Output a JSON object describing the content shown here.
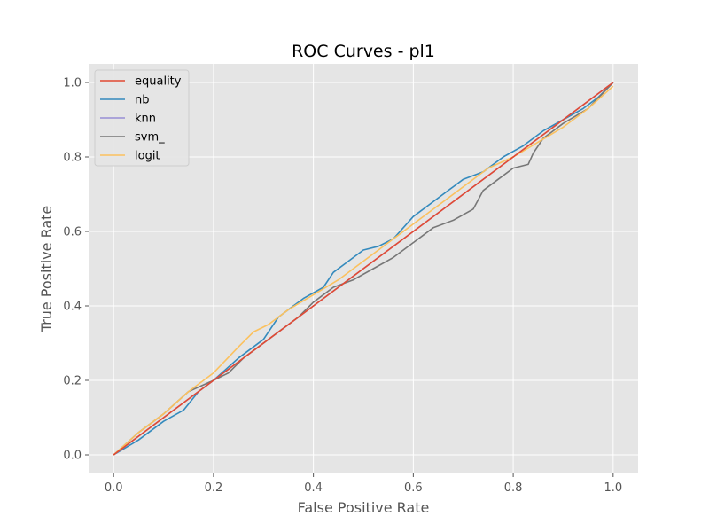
{
  "chart_data": {
    "type": "line",
    "title": "ROC Curves - pl1",
    "xlabel": "False Positive Rate",
    "ylabel": "True Positive Rate",
    "xlim": [
      -0.05,
      1.05
    ],
    "ylim": [
      -0.05,
      1.05
    ],
    "xticks": [
      "0.0",
      "0.2",
      "0.4",
      "0.6",
      "0.8",
      "1.0"
    ],
    "yticks": [
      "0.0",
      "0.2",
      "0.4",
      "0.6",
      "0.8",
      "1.0"
    ],
    "grid": true,
    "legend_position": "upper-left",
    "series": [
      {
        "name": "equality",
        "color": "#E24A33",
        "x": [
          0,
          1
        ],
        "y": [
          0,
          1
        ]
      },
      {
        "name": "nb",
        "color": "#348ABD",
        "x": [
          0,
          0.05,
          0.1,
          0.14,
          0.17,
          0.2,
          0.25,
          0.3,
          0.33,
          0.35,
          0.38,
          0.42,
          0.44,
          0.47,
          0.5,
          0.53,
          0.56,
          0.6,
          0.64,
          0.68,
          0.7,
          0.74,
          0.78,
          0.82,
          0.86,
          0.9,
          0.94,
          0.97,
          1.0
        ],
        "y": [
          0,
          0.04,
          0.09,
          0.12,
          0.17,
          0.2,
          0.26,
          0.31,
          0.37,
          0.39,
          0.42,
          0.45,
          0.49,
          0.52,
          0.55,
          0.56,
          0.58,
          0.64,
          0.68,
          0.72,
          0.74,
          0.76,
          0.8,
          0.83,
          0.87,
          0.9,
          0.93,
          0.96,
          1.0
        ]
      },
      {
        "name": "knn",
        "color": "#988ED5",
        "x": [
          0,
          0.1,
          0.2,
          0.3,
          0.4,
          0.5,
          0.6,
          0.7,
          0.8,
          0.9,
          1.0
        ],
        "y": [
          0,
          0.1,
          0.2,
          0.3,
          0.4,
          0.5,
          0.6,
          0.7,
          0.8,
          0.9,
          1.0
        ]
      },
      {
        "name": "svm_",
        "color": "#777777",
        "x": [
          0,
          0.05,
          0.1,
          0.15,
          0.2,
          0.23,
          0.26,
          0.29,
          0.33,
          0.37,
          0.4,
          0.44,
          0.48,
          0.52,
          0.56,
          0.6,
          0.64,
          0.68,
          0.72,
          0.74,
          0.77,
          0.8,
          0.83,
          0.84,
          0.86,
          0.9,
          0.95,
          1.0
        ],
        "y": [
          0,
          0.06,
          0.11,
          0.17,
          0.2,
          0.22,
          0.26,
          0.29,
          0.33,
          0.37,
          0.41,
          0.45,
          0.47,
          0.5,
          0.53,
          0.57,
          0.61,
          0.63,
          0.66,
          0.71,
          0.74,
          0.77,
          0.78,
          0.81,
          0.85,
          0.89,
          0.93,
          1.0
        ]
      },
      {
        "name": "logit",
        "color": "#FBC15E",
        "x": [
          0,
          0.05,
          0.1,
          0.15,
          0.2,
          0.25,
          0.28,
          0.31,
          0.35,
          0.4,
          0.45,
          0.5,
          0.55,
          0.6,
          0.65,
          0.7,
          0.75,
          0.8,
          0.85,
          0.9,
          0.95,
          1.0
        ],
        "y": [
          0,
          0.06,
          0.11,
          0.17,
          0.22,
          0.29,
          0.33,
          0.35,
          0.39,
          0.43,
          0.47,
          0.52,
          0.57,
          0.62,
          0.67,
          0.72,
          0.77,
          0.8,
          0.84,
          0.88,
          0.93,
          0.99
        ]
      }
    ]
  }
}
